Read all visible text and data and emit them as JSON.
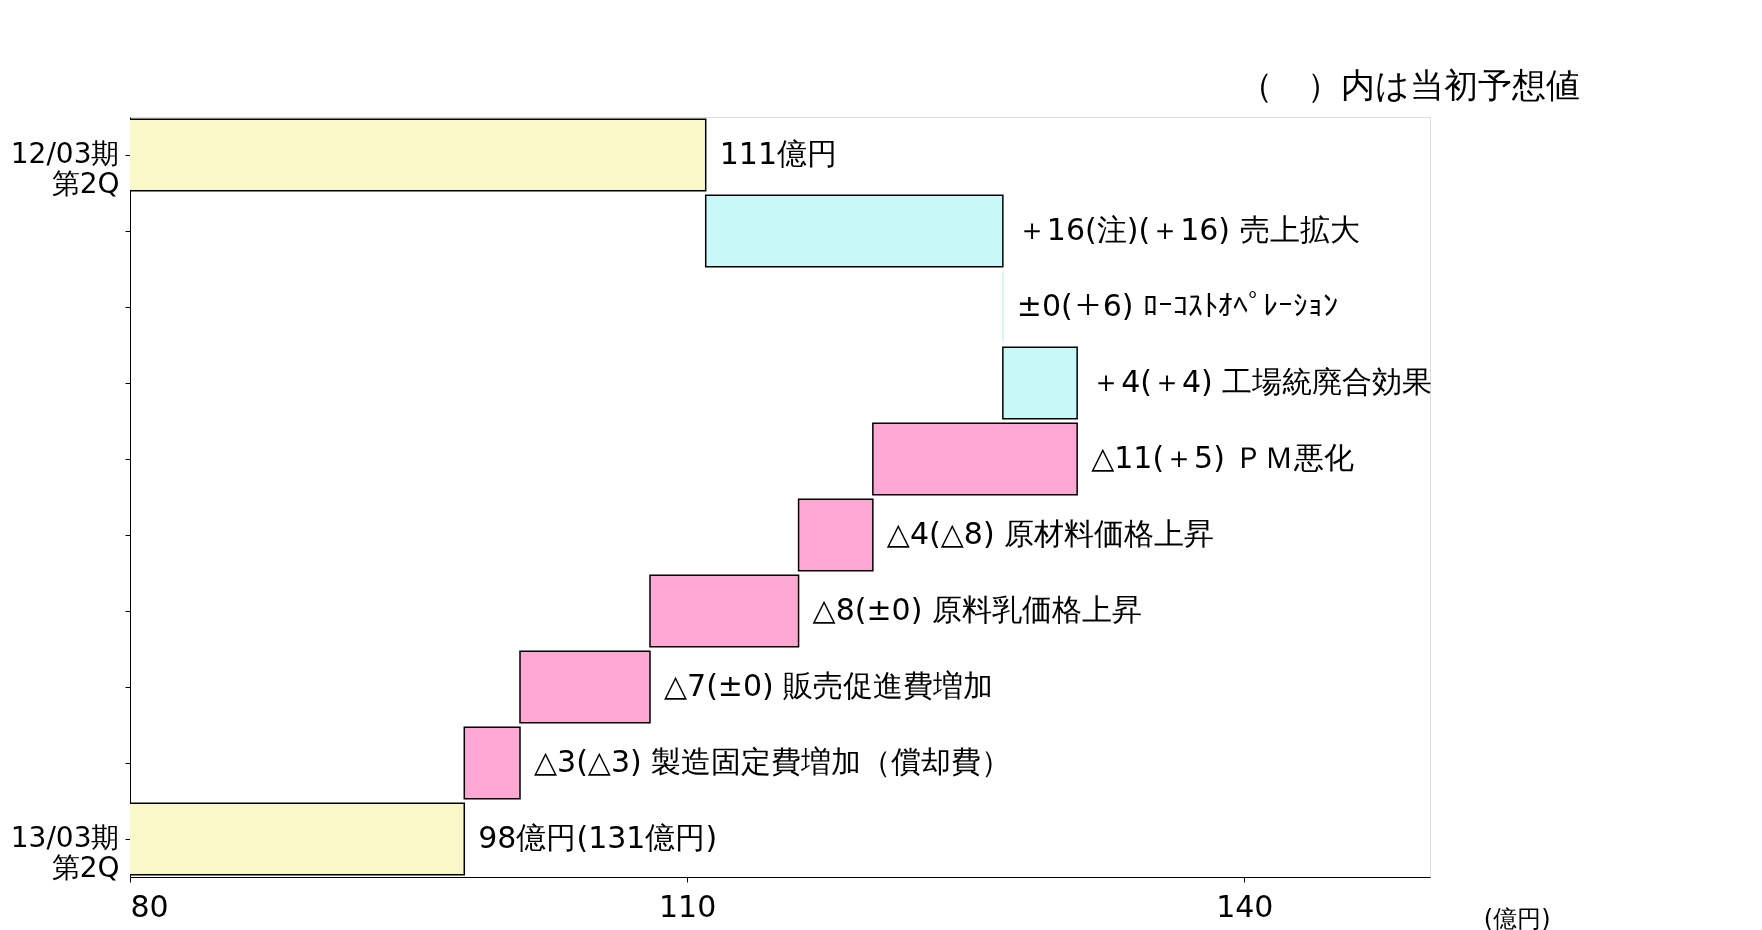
{
  "chart_data": {
    "type": "bar",
    "orientation": "horizontal",
    "categories": [
      "12/03期第2Q",
      null,
      null,
      null,
      null,
      null,
      null,
      null,
      null,
      "13/03期第2Q"
    ],
    "values": [
      111,
      16,
      0,
      4,
      -11,
      -4,
      -8,
      -7,
      -3,
      98
    ],
    "base": [
      null,
      111,
      127,
      127,
      131,
      120,
      116,
      108,
      101,
      null
    ],
    "colors": [
      "#f8f8c8",
      "#c8f8f8",
      "#c8f8f8",
      "#c8f8f8",
      "#ffa8d4",
      "#ffa8d4",
      "#ffa8d4",
      "#ffa8d4",
      "#ffa8d4",
      "#f8f8c8"
    ],
    "value_labels": [
      "111億円",
      "＋16(注)(＋16) 売上拡大",
      "±0(＋6) ﾛｰｺｽﾄｵﾍﾟﾚｰｼｮﾝ",
      "＋4(＋4) 工場統廃合効果",
      "△11(＋5) ＰＭ悪化",
      "△4(△8) 原材料価格上昇",
      "△8(±0) 原料乳価格上昇",
      "△7(±0) 販売促進費増加",
      "△3(△3) 製造固定費増加（償却費）",
      "98億円(131億円)"
    ],
    "xlim": [
      80,
      150
    ],
    "xticks": [
      80,
      110,
      140
    ],
    "xlabel": "(億円)",
    "annotations": [
      "（　）内は当初予想値"
    ],
    "grid": false
  }
}
